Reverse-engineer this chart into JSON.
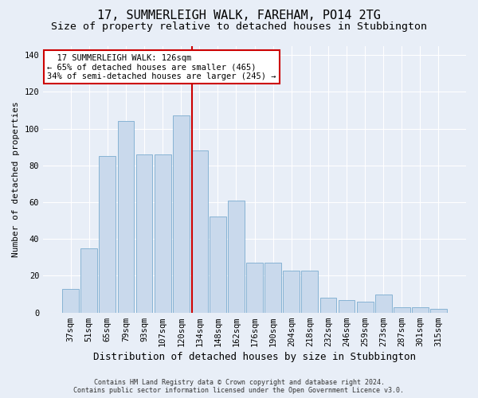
{
  "title1": "17, SUMMERLEIGH WALK, FAREHAM, PO14 2TG",
  "title2": "Size of property relative to detached houses in Stubbington",
  "xlabel": "Distribution of detached houses by size in Stubbington",
  "ylabel": "Number of detached properties",
  "footnote": "Contains HM Land Registry data © Crown copyright and database right 2024.\nContains public sector information licensed under the Open Government Licence v3.0.",
  "categories": [
    "37sqm",
    "51sqm",
    "65sqm",
    "79sqm",
    "93sqm",
    "107sqm",
    "120sqm",
    "134sqm",
    "148sqm",
    "162sqm",
    "176sqm",
    "190sqm",
    "204sqm",
    "218sqm",
    "232sqm",
    "246sqm",
    "259sqm",
    "273sqm",
    "287sqm",
    "301sqm",
    "315sqm"
  ],
  "values": [
    13,
    35,
    85,
    104,
    86,
    86,
    107,
    88,
    52,
    61,
    27,
    27,
    23,
    23,
    8,
    7,
    6,
    10,
    3,
    3,
    2
  ],
  "bar_color": "#c9d9ec",
  "bar_edge_color": "#7aabcf",
  "marker_line_color": "#cc0000",
  "annotation_box_color": "#ffffff",
  "annotation_border_color": "#cc0000",
  "ylim": [
    0,
    145
  ],
  "bg_color": "#e8eef7",
  "plot_bg_color": "#e8eef7",
  "grid_color": "#ffffff",
  "title1_fontsize": 11,
  "title2_fontsize": 9.5,
  "xlabel_fontsize": 9,
  "ylabel_fontsize": 8,
  "tick_fontsize": 7.5,
  "annot_fontsize": 7.5,
  "footnote_fontsize": 6
}
